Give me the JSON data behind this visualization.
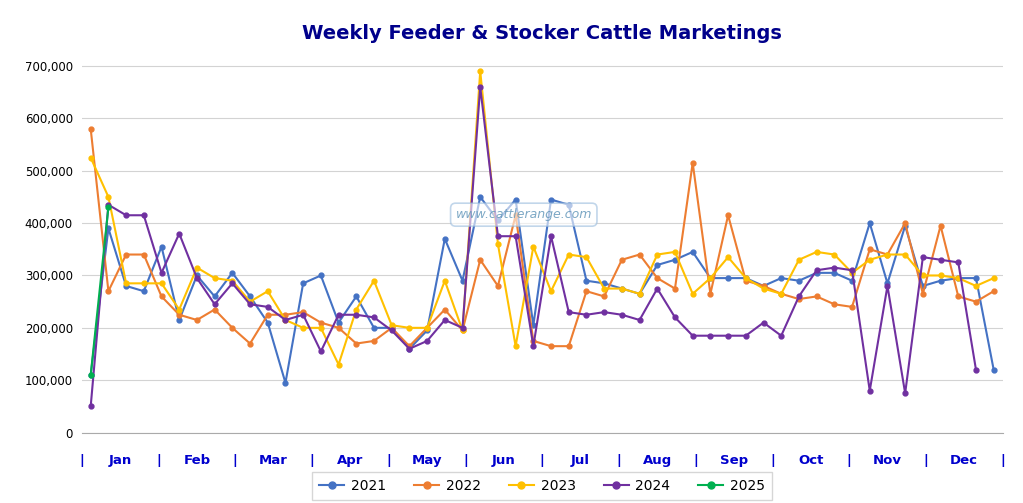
{
  "title": "Weekly Feeder & Stocker Cattle Marketings",
  "title_color": "#00008B",
  "background_color": "#FFFFFF",
  "watermark": "www.cattlerange.com",
  "ylim_max": 730000,
  "ytick_max": 700000,
  "ytick_step": 100000,
  "series": {
    "2021": {
      "color": "#4472C4",
      "values": [
        110000,
        390000,
        280000,
        270000,
        355000,
        215000,
        300000,
        260000,
        305000,
        260000,
        210000,
        95000,
        285000,
        300000,
        210000,
        260000,
        200000,
        200000,
        160000,
        195000,
        370000,
        290000,
        450000,
        405000,
        445000,
        205000,
        445000,
        435000,
        290000,
        285000,
        275000,
        265000,
        320000,
        330000,
        345000,
        295000,
        295000,
        295000,
        280000,
        295000,
        290000,
        305000,
        305000,
        290000,
        400000,
        285000,
        395000,
        280000,
        290000,
        295000,
        295000,
        120000
      ]
    },
    "2022": {
      "color": "#ED7D31",
      "values": [
        580000,
        270000,
        340000,
        340000,
        260000,
        225000,
        215000,
        235000,
        200000,
        170000,
        225000,
        225000,
        230000,
        210000,
        200000,
        170000,
        175000,
        200000,
        165000,
        200000,
        235000,
        195000,
        330000,
        280000,
        415000,
        175000,
        165000,
        165000,
        270000,
        260000,
        330000,
        340000,
        295000,
        275000,
        515000,
        265000,
        415000,
        290000,
        280000,
        265000,
        255000,
        260000,
        245000,
        240000,
        350000,
        340000,
        400000,
        265000,
        395000,
        260000,
        250000,
        270000
      ]
    },
    "2023": {
      "color": "#FFC000",
      "values": [
        525000,
        450000,
        285000,
        285000,
        285000,
        235000,
        315000,
        295000,
        290000,
        250000,
        270000,
        215000,
        200000,
        200000,
        130000,
        235000,
        290000,
        205000,
        200000,
        200000,
        290000,
        195000,
        690000,
        360000,
        165000,
        355000,
        270000,
        340000,
        335000,
        275000,
        275000,
        265000,
        340000,
        345000,
        265000,
        295000,
        335000,
        295000,
        275000,
        265000,
        330000,
        345000,
        340000,
        305000,
        330000,
        340000,
        340000,
        300000,
        300000,
        295000,
        280000,
        295000
      ]
    },
    "2024": {
      "color": "#7030A0",
      "values": [
        50000,
        435000,
        415000,
        415000,
        305000,
        380000,
        295000,
        245000,
        285000,
        245000,
        240000,
        215000,
        225000,
        155000,
        225000,
        225000,
        220000,
        195000,
        160000,
        175000,
        215000,
        200000,
        660000,
        375000,
        375000,
        165000,
        375000,
        230000,
        225000,
        230000,
        225000,
        215000,
        275000,
        220000,
        185000,
        185000,
        185000,
        185000,
        210000,
        185000,
        260000,
        310000,
        315000,
        310000,
        80000,
        280000,
        75000,
        335000,
        330000,
        325000,
        120000,
        null
      ]
    },
    "2025": {
      "color": "#00B050",
      "values": [
        110000,
        430000,
        null,
        null,
        null,
        null,
        null,
        null,
        null,
        null,
        null,
        null,
        null,
        null,
        null,
        null,
        null,
        null,
        null,
        null,
        null,
        null,
        null,
        null,
        null,
        null,
        null,
        null,
        null,
        null,
        null,
        null,
        null,
        null,
        null,
        null,
        null,
        null,
        null,
        null,
        null,
        null,
        null,
        null,
        null,
        null,
        null,
        null,
        null,
        null,
        null,
        null
      ]
    }
  },
  "legend_entries": [
    "2021",
    "2022",
    "2023",
    "2024",
    "2025"
  ],
  "xlabel_color": "#0000CD",
  "grid_color": "#D3D3D3",
  "spine_color": "#AAAAAA"
}
